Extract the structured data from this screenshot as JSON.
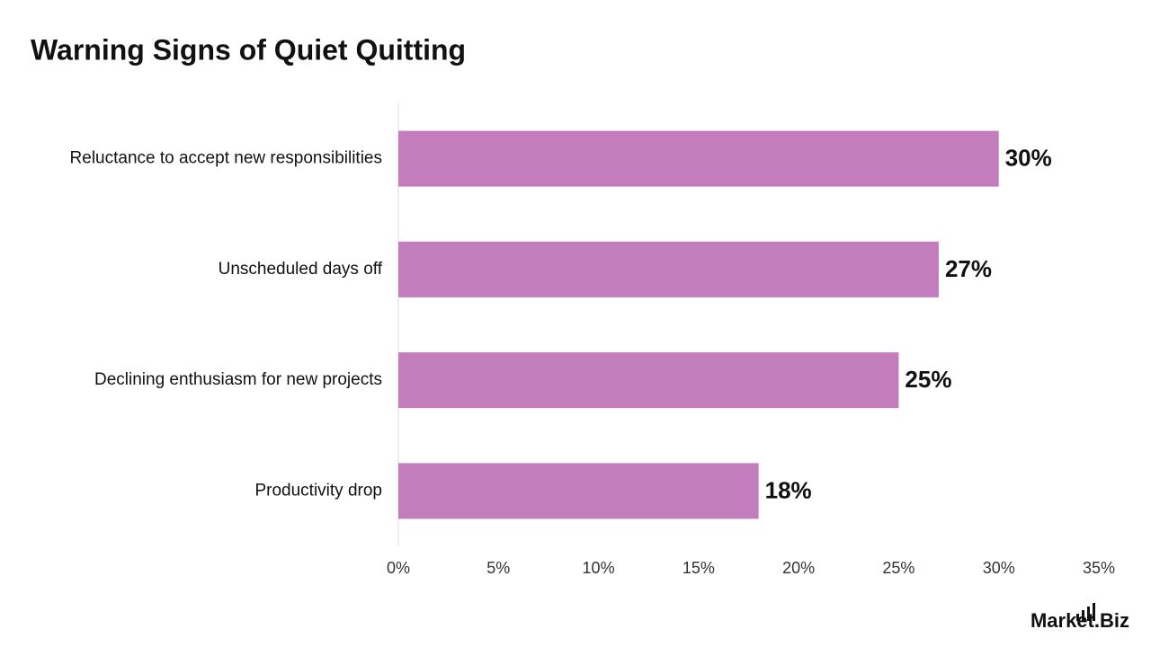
{
  "chart_data": {
    "type": "bar",
    "orientation": "horizontal",
    "title": "Warning Signs of Quiet Quitting",
    "categories": [
      "Reluctance to accept new responsibilities",
      "Unscheduled days off",
      "Declining enthusiasm for new projects",
      "Productivity drop"
    ],
    "values": [
      30,
      27,
      25,
      18
    ],
    "value_labels": [
      "30%",
      "27%",
      "25%",
      "18%"
    ],
    "color": "#c47dbc",
    "xlim": [
      0,
      35
    ],
    "xticks": [
      {
        "value": 0,
        "label": "0%"
      },
      {
        "value": 5,
        "label": "5%"
      },
      {
        "value": 10,
        "label": "10%"
      },
      {
        "value": 15,
        "label": "15%"
      },
      {
        "value": 20,
        "label": "20%"
      },
      {
        "value": 25,
        "label": "25%"
      },
      {
        "value": 30,
        "label": "30%"
      },
      {
        "value": 35,
        "label": "35%"
      }
    ],
    "grid": false,
    "logo": "Market.Biz"
  }
}
